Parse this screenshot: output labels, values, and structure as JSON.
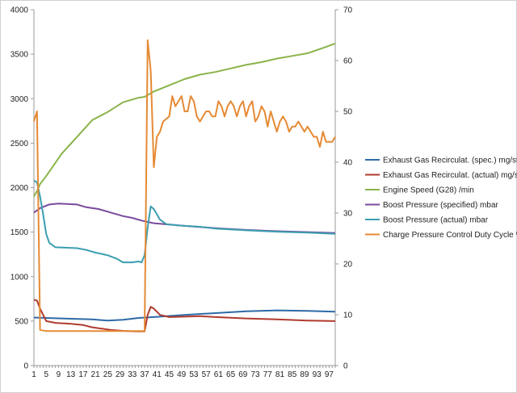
{
  "chart_data": {
    "type": "line",
    "title": "",
    "xlabel": "",
    "ylabel": "",
    "ylim_left": [
      0,
      4000
    ],
    "ylim_right": [
      0,
      70
    ],
    "grid": false,
    "legend_position": "right",
    "x_range": [
      1,
      99
    ],
    "x_tick_labels": [
      "1",
      "5",
      "9",
      "13",
      "17",
      "21",
      "25",
      "29",
      "33",
      "37",
      "41",
      "45",
      "49",
      "53",
      "57",
      "61",
      "65",
      "69",
      "73",
      "77",
      "81",
      "85",
      "89",
      "93",
      "97"
    ],
    "y_left_ticks": [
      "0",
      "500",
      "1000",
      "1500",
      "2000",
      "2500",
      "3000",
      "3500",
      "4000"
    ],
    "y_right_ticks": [
      "0",
      "10",
      "20",
      "30",
      "40",
      "50",
      "60",
      "70"
    ],
    "series": [
      {
        "name": "Exhaust Gas Recirculat. (spec.)  mg/str",
        "axis": "left",
        "color": "#2e6aa6",
        "points": [
          [
            1,
            540
          ],
          [
            10,
            530
          ],
          [
            20,
            520
          ],
          [
            25,
            505
          ],
          [
            30,
            515
          ],
          [
            35,
            535
          ],
          [
            40,
            545
          ],
          [
            50,
            570
          ],
          [
            60,
            590
          ],
          [
            70,
            610
          ],
          [
            80,
            620
          ],
          [
            90,
            615
          ],
          [
            99,
            605
          ]
        ]
      },
      {
        "name": "Exhaust Gas Recirculat. (actual)  mg/str",
        "axis": "left",
        "color": "#b03a2e",
        "points": [
          [
            1,
            740
          ],
          [
            2,
            730
          ],
          [
            3,
            640
          ],
          [
            5,
            500
          ],
          [
            8,
            480
          ],
          [
            13,
            470
          ],
          [
            17,
            455
          ],
          [
            20,
            430
          ],
          [
            23,
            415
          ],
          [
            26,
            400
          ],
          [
            30,
            390
          ],
          [
            34,
            385
          ],
          [
            37,
            385
          ],
          [
            38,
            570
          ],
          [
            39,
            660
          ],
          [
            40,
            640
          ],
          [
            42,
            570
          ],
          [
            45,
            545
          ],
          [
            50,
            550
          ],
          [
            55,
            555
          ],
          [
            60,
            545
          ],
          [
            70,
            530
          ],
          [
            80,
            520
          ],
          [
            90,
            505
          ],
          [
            99,
            500
          ]
        ]
      },
      {
        "name": "Engine Speed (G28)   /min",
        "axis": "left",
        "color": "#8ab34a",
        "points": [
          [
            1,
            1900
          ],
          [
            2,
            1960
          ],
          [
            3,
            2040
          ],
          [
            5,
            2130
          ],
          [
            10,
            2380
          ],
          [
            15,
            2570
          ],
          [
            20,
            2760
          ],
          [
            25,
            2850
          ],
          [
            30,
            2960
          ],
          [
            35,
            3010
          ],
          [
            37,
            3020
          ],
          [
            40,
            3080
          ],
          [
            45,
            3150
          ],
          [
            50,
            3220
          ],
          [
            55,
            3270
          ],
          [
            60,
            3300
          ],
          [
            65,
            3340
          ],
          [
            70,
            3380
          ],
          [
            75,
            3410
          ],
          [
            80,
            3450
          ],
          [
            85,
            3480
          ],
          [
            90,
            3510
          ],
          [
            95,
            3570
          ],
          [
            99,
            3620
          ]
        ]
      },
      {
        "name": "Boost Pressure (specified)  mbar",
        "axis": "left",
        "color": "#7a4a9e",
        "points": [
          [
            1,
            1720
          ],
          [
            3,
            1770
          ],
          [
            6,
            1810
          ],
          [
            9,
            1820
          ],
          [
            15,
            1810
          ],
          [
            18,
            1780
          ],
          [
            22,
            1760
          ],
          [
            26,
            1720
          ],
          [
            30,
            1680
          ],
          [
            33,
            1660
          ],
          [
            36,
            1630
          ],
          [
            40,
            1600
          ],
          [
            50,
            1570
          ],
          [
            60,
            1545
          ],
          [
            70,
            1525
          ],
          [
            80,
            1510
          ],
          [
            90,
            1500
          ],
          [
            99,
            1490
          ]
        ]
      },
      {
        "name": "Boost Pressure (actual)  mbar",
        "axis": "left",
        "color": "#3a9eb0",
        "points": [
          [
            1,
            2080
          ],
          [
            2,
            2060
          ],
          [
            3,
            1900
          ],
          [
            4,
            1700
          ],
          [
            5,
            1480
          ],
          [
            6,
            1380
          ],
          [
            8,
            1330
          ],
          [
            15,
            1320
          ],
          [
            18,
            1300
          ],
          [
            21,
            1270
          ],
          [
            25,
            1240
          ],
          [
            28,
            1200
          ],
          [
            30,
            1160
          ],
          [
            33,
            1160
          ],
          [
            35,
            1170
          ],
          [
            36,
            1160
          ],
          [
            37,
            1240
          ],
          [
            38,
            1550
          ],
          [
            39,
            1790
          ],
          [
            40,
            1760
          ],
          [
            42,
            1640
          ],
          [
            44,
            1590
          ],
          [
            48,
            1575
          ],
          [
            55,
            1560
          ],
          [
            60,
            1540
          ],
          [
            70,
            1520
          ],
          [
            80,
            1505
          ],
          [
            90,
            1495
          ],
          [
            99,
            1480
          ]
        ]
      },
      {
        "name": "Charge Pressure Control Duty Cycle  %",
        "axis": "right",
        "color": "#e58a35",
        "points": [
          [
            1,
            48
          ],
          [
            2,
            50
          ],
          [
            3,
            7
          ],
          [
            5,
            6.8
          ],
          [
            15,
            6.8
          ],
          [
            25,
            6.8
          ],
          [
            35,
            6.8
          ],
          [
            37,
            6.8
          ],
          [
            38,
            64
          ],
          [
            39,
            58
          ],
          [
            40,
            39
          ],
          [
            41,
            45
          ],
          [
            42,
            46
          ],
          [
            43,
            48
          ],
          [
            45,
            49
          ],
          [
            46,
            53
          ],
          [
            47,
            51
          ],
          [
            48,
            52
          ],
          [
            49,
            53
          ],
          [
            50,
            50
          ],
          [
            51,
            50
          ],
          [
            52,
            53
          ],
          [
            53,
            52
          ],
          [
            54,
            49
          ],
          [
            55,
            48
          ],
          [
            56,
            49
          ],
          [
            57,
            50
          ],
          [
            58,
            50
          ],
          [
            59,
            49
          ],
          [
            60,
            49
          ],
          [
            61,
            52
          ],
          [
            62,
            51
          ],
          [
            63,
            49
          ],
          [
            64,
            51
          ],
          [
            65,
            52
          ],
          [
            66,
            51
          ],
          [
            67,
            49
          ],
          [
            68,
            51
          ],
          [
            69,
            52
          ],
          [
            70,
            49
          ],
          [
            71,
            51
          ],
          [
            72,
            52
          ],
          [
            73,
            48
          ],
          [
            74,
            49
          ],
          [
            75,
            51
          ],
          [
            76,
            50
          ],
          [
            77,
            47
          ],
          [
            78,
            50
          ],
          [
            79,
            48
          ],
          [
            80,
            46
          ],
          [
            81,
            48
          ],
          [
            82,
            49
          ],
          [
            83,
            48
          ],
          [
            84,
            46
          ],
          [
            85,
            47
          ],
          [
            86,
            47
          ],
          [
            87,
            48
          ],
          [
            88,
            47
          ],
          [
            89,
            46
          ],
          [
            90,
            47
          ],
          [
            91,
            46
          ],
          [
            92,
            45
          ],
          [
            93,
            45
          ],
          [
            94,
            43
          ],
          [
            95,
            46
          ],
          [
            96,
            44
          ],
          [
            97,
            44
          ],
          [
            98,
            44
          ],
          [
            99,
            45
          ]
        ]
      }
    ]
  }
}
